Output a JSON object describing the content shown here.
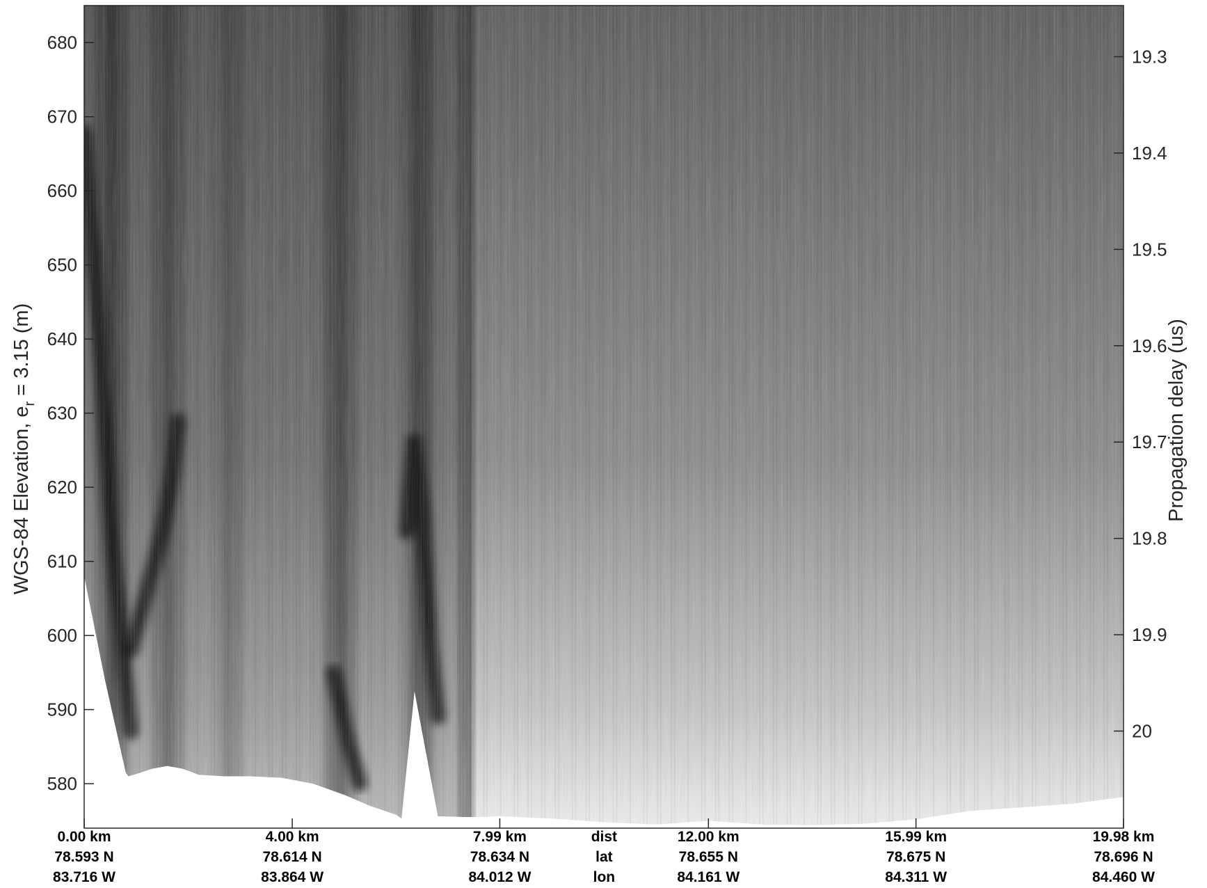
{
  "chart_data": {
    "type": "heatmap",
    "colormap": "grayscale",
    "left_axis": {
      "label_main": "WGS-84 Elevation, e",
      "label_sub": "r",
      "label_tail": " = 3.15 (m)",
      "range": [
        574,
        685
      ],
      "ticks": [
        580,
        590,
        600,
        610,
        620,
        630,
        640,
        650,
        660,
        670,
        680
      ]
    },
    "right_axis": {
      "label": "Propagation delay (us)",
      "ticks": [
        "19.3",
        "19.4",
        "19.5",
        "19.6",
        "19.7",
        "19.8",
        "19.9",
        "20"
      ],
      "tick_elevations": [
        678.1,
        665.1,
        652.1,
        639.1,
        626.1,
        613.1,
        600.1,
        587.1
      ]
    },
    "bottom_rows": {
      "labels": [
        "dist",
        "lat",
        "lon"
      ],
      "dist": [
        "0.00 km",
        "4.00 km",
        "7.99 km",
        "12.00 km",
        "15.99 km",
        "19.98 km"
      ],
      "lat": [
        "78.593 N",
        "78.614 N",
        "78.634 N",
        "78.655 N",
        "78.675 N",
        "78.696 N"
      ],
      "lon": [
        "83.716 W",
        "83.864 W",
        "84.012 W",
        "84.161 W",
        "84.311 W",
        "84.460 W"
      ],
      "dist_km": [
        0.0,
        4.0,
        7.99,
        12.0,
        15.99,
        19.98
      ]
    },
    "x_range_km": [
      0.0,
      19.98
    ],
    "bed_profile": {
      "x_km": [
        0.0,
        0.4,
        0.8,
        0.85,
        1.0,
        1.3,
        1.6,
        1.9,
        2.2,
        2.7,
        3.2,
        3.8,
        4.4,
        5.0,
        5.5,
        6.0,
        6.1,
        6.35,
        6.8,
        6.85,
        7.3,
        7.6,
        8.0,
        9.0,
        10.0,
        11.0,
        12.0,
        13.0,
        14.0,
        15.0,
        16.0,
        17.0,
        18.0,
        19.0,
        19.98
      ],
      "elevation_m": [
        608.0,
        594.0,
        581.5,
        581.0,
        581.3,
        582.0,
        582.4,
        582.0,
        581.2,
        581.0,
        581.0,
        580.8,
        580.0,
        578.5,
        577.0,
        575.8,
        575.3,
        592.5,
        575.6,
        575.6,
        575.5,
        575.5,
        575.6,
        575.3,
        574.8,
        574.5,
        575.0,
        574.5,
        574.4,
        574.6,
        575.2,
        576.3,
        576.8,
        577.3,
        578.2
      ]
    },
    "dark_bands": [
      {
        "x_km": 0.55,
        "width_km": 0.45,
        "strength": 0.5
      },
      {
        "x_km": 1.6,
        "width_km": 0.5,
        "strength": 0.35
      },
      {
        "x_km": 2.8,
        "width_km": 0.35,
        "strength": 0.25
      },
      {
        "x_km": 4.9,
        "width_km": 0.5,
        "strength": 0.42
      },
      {
        "x_km": 6.45,
        "width_km": 0.4,
        "strength": 0.5
      },
      {
        "x_km": 7.35,
        "width_km": 0.18,
        "strength": 0.55
      }
    ],
    "dark_reflectors": [
      {
        "x_km": [
          0.0,
          0.3,
          0.55,
          0.8,
          0.9
        ],
        "elevation_m": [
          668.0,
          640.0,
          612.0,
          594.0,
          587.0
        ]
      },
      {
        "x_km": [
          0.9,
          1.2,
          1.5,
          1.7,
          1.8
        ],
        "elevation_m": [
          598.0,
          606.0,
          614.0,
          622.0,
          629.0
        ]
      },
      {
        "x_km": [
          6.2,
          6.35,
          6.5,
          6.65,
          6.8
        ],
        "elevation_m": [
          614.0,
          627.0,
          617.0,
          600.0,
          589.0
        ]
      },
      {
        "x_km": [
          4.8,
          4.95,
          5.1,
          5.3
        ],
        "elevation_m": [
          595.0,
          590.0,
          585.0,
          580.0
        ]
      }
    ],
    "grid": false,
    "legend": false
  }
}
